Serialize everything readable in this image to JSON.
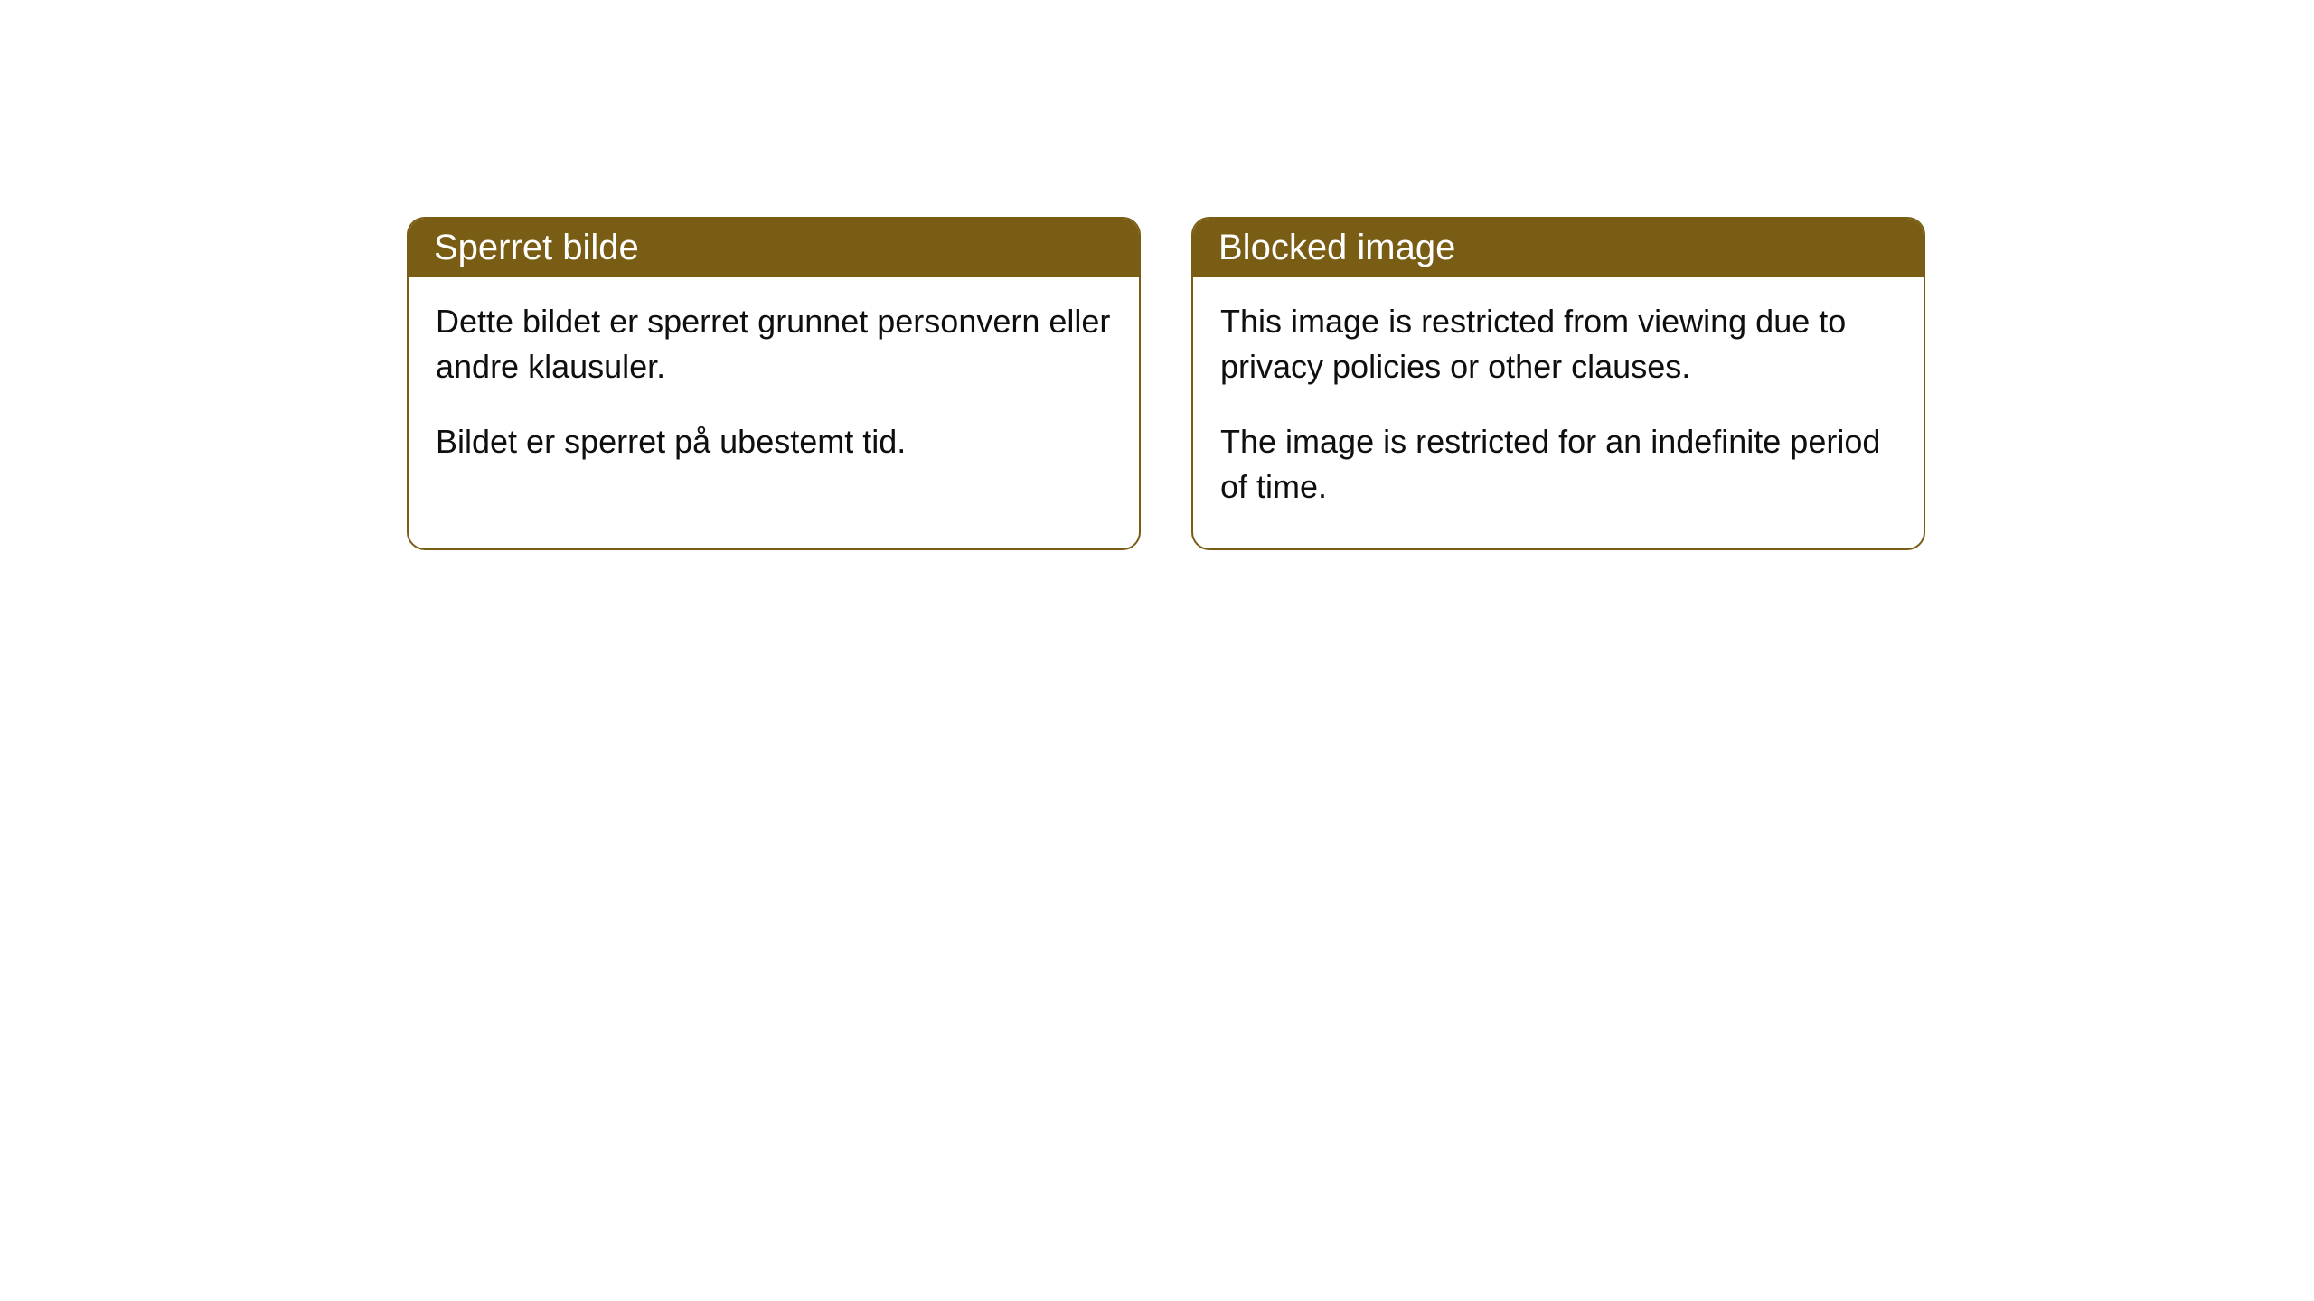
{
  "cards": [
    {
      "title": "Sperret bilde",
      "paragraph1": "Dette bildet er sperret grunnet personvern eller andre klausuler.",
      "paragraph2": "Bildet er sperret på ubestemt tid."
    },
    {
      "title": "Blocked image",
      "paragraph1": "This image is restricted from viewing due to privacy policies or other clauses.",
      "paragraph2": "The image is restricted for an indefinite period of time."
    }
  ],
  "styling": {
    "header_background": "#7a5d14",
    "header_text_color": "#ffffff",
    "border_color": "#7a5d14",
    "body_background": "#ffffff",
    "body_text_color": "#0f0f0f",
    "border_radius": 20,
    "header_fontsize": 40,
    "body_fontsize": 36
  }
}
